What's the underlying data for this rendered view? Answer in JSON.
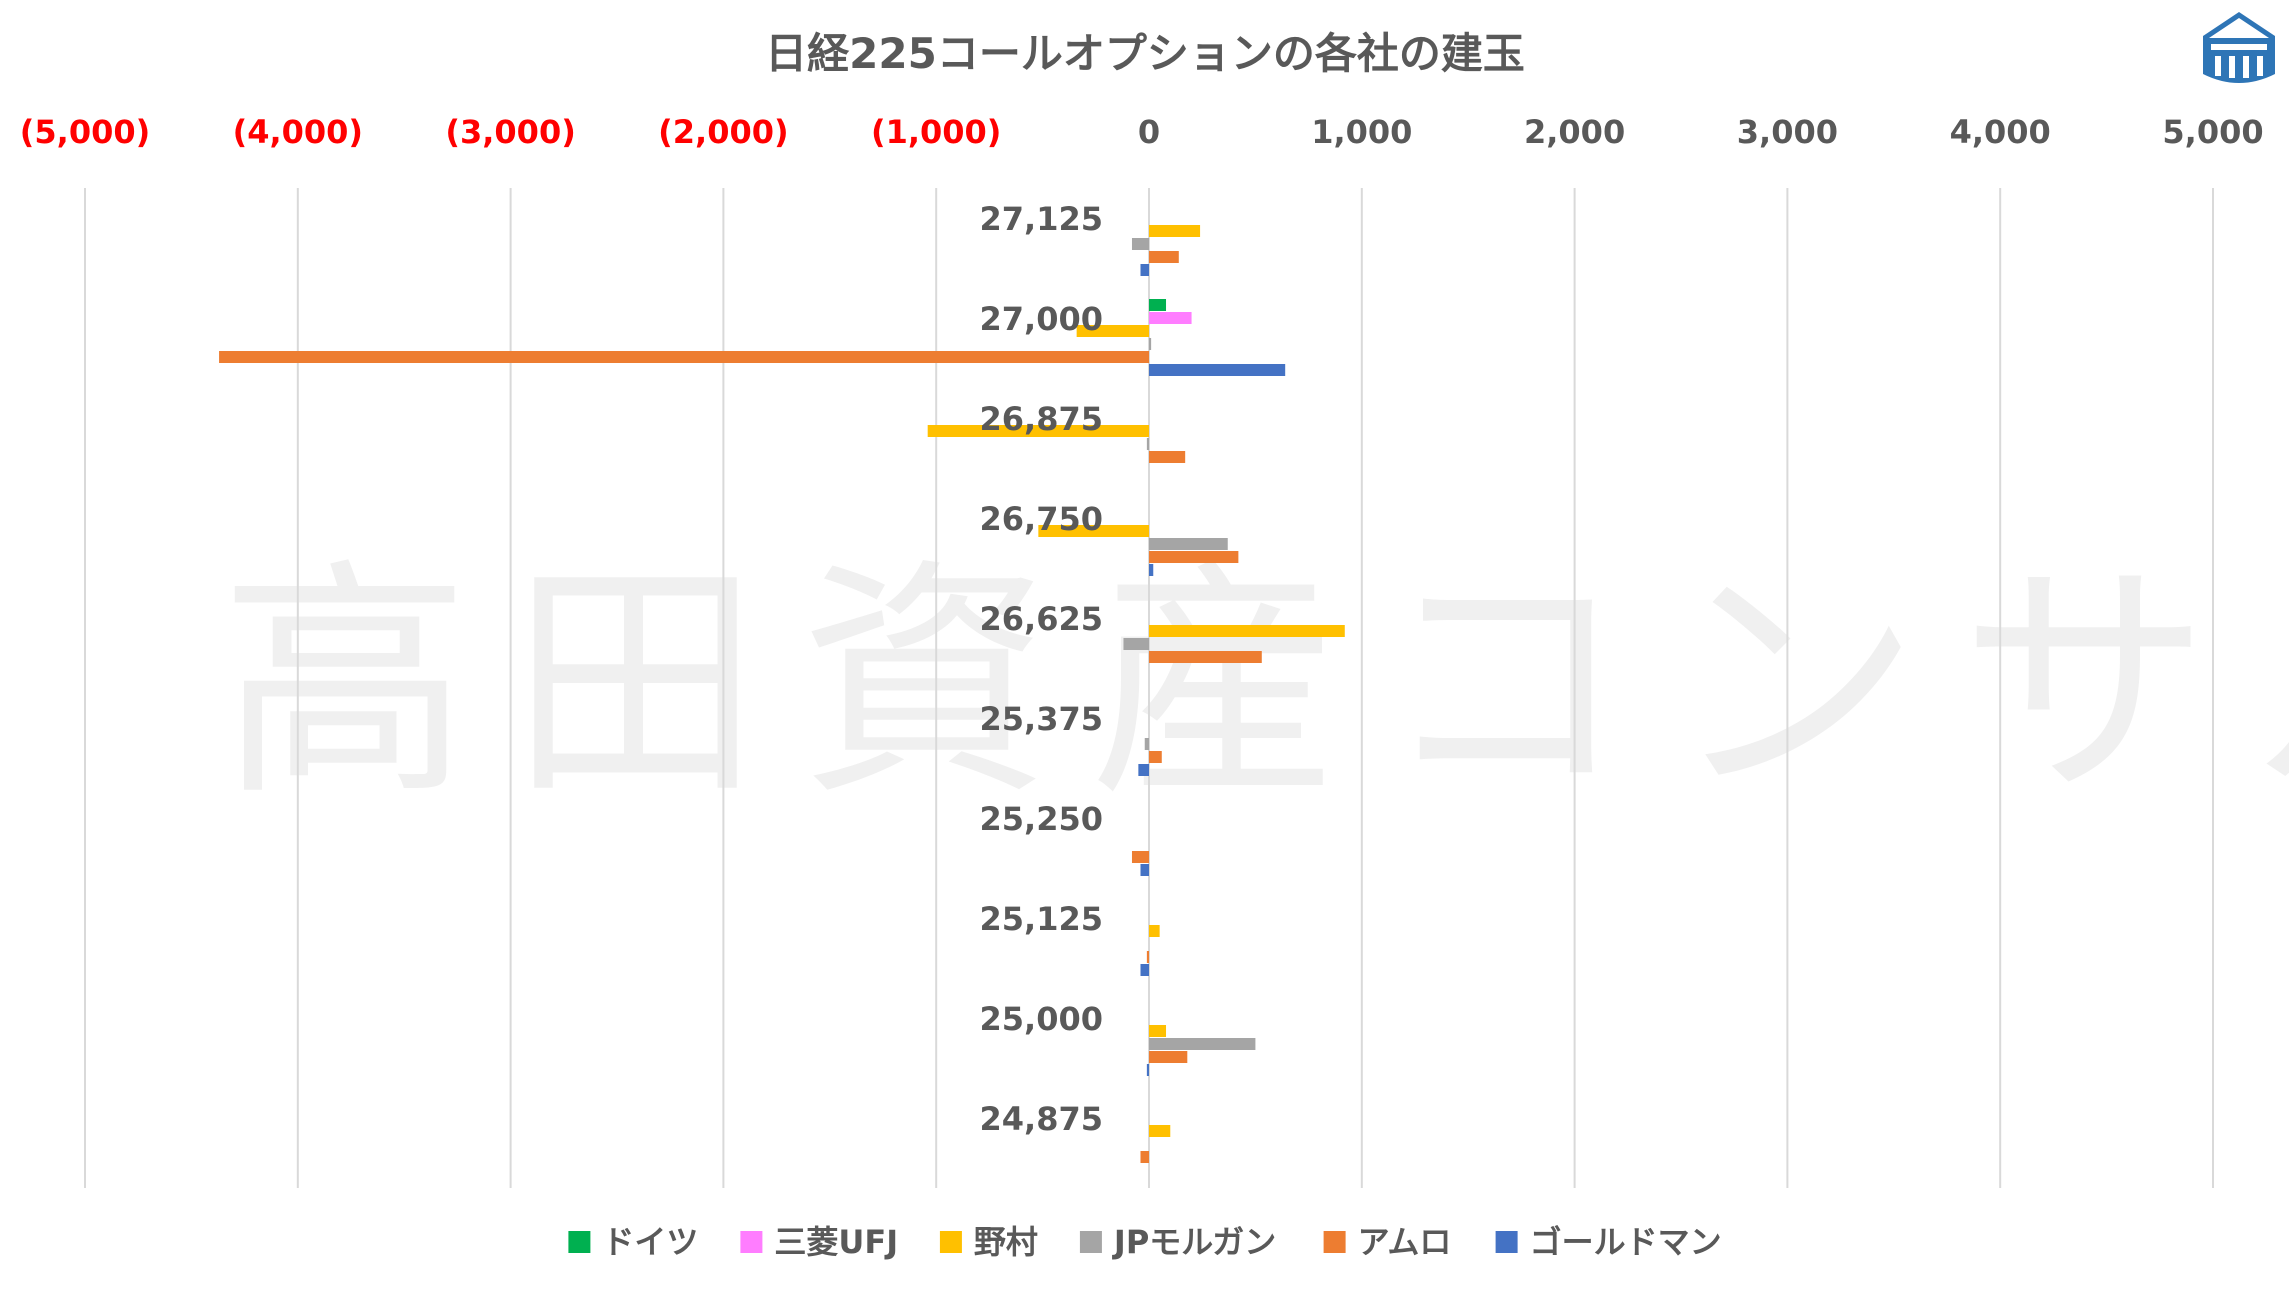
{
  "chart_data": {
    "type": "bar",
    "orientation": "horizontal",
    "title": "日経225コールオプションの各社の建玉",
    "watermark": "高田資産コンサル",
    "xlim": [
      -5000,
      5000
    ],
    "x_ticks": [
      -5000,
      -4000,
      -3000,
      -2000,
      -1000,
      0,
      1000,
      2000,
      3000,
      4000,
      5000
    ],
    "x_tick_labels": [
      "(5,000)",
      "(4,000)",
      "(3,000)",
      "(2,000)",
      "(1,000)",
      "0",
      "1,000",
      "2,000",
      "3,000",
      "4,000",
      "5,000"
    ],
    "negative_tick_color": "#ff0000",
    "positive_tick_color": "#595959",
    "grid": true,
    "legend_position": "bottom",
    "categories": [
      "27,125",
      "27,000",
      "26,875",
      "26,750",
      "26,625",
      "25,375",
      "25,250",
      "25,125",
      "25,000",
      "24,875"
    ],
    "series": [
      {
        "name": "ドイツ",
        "color": "#00b050",
        "values": [
          0,
          80,
          0,
          0,
          0,
          0,
          0,
          0,
          0,
          0
        ]
      },
      {
        "name": "三菱UFJ",
        "color": "#ff7dff",
        "values": [
          0,
          200,
          0,
          0,
          0,
          0,
          0,
          0,
          0,
          0
        ]
      },
      {
        "name": "野村",
        "color": "#ffc000",
        "values": [
          240,
          -340,
          -1040,
          -520,
          920,
          0,
          0,
          50,
          80,
          100
        ]
      },
      {
        "name": "JPモルガン",
        "color": "#a5a5a5",
        "values": [
          -80,
          10,
          -10,
          370,
          -120,
          -20,
          0,
          0,
          500,
          0
        ]
      },
      {
        "name": "アムロ",
        "color": "#ed7d31",
        "values": [
          140,
          -4370,
          170,
          420,
          530,
          60,
          -80,
          -10,
          180,
          -40
        ]
      },
      {
        "name": "ゴールドマン",
        "color": "#4472c4",
        "values": [
          -40,
          640,
          0,
          20,
          0,
          -50,
          -40,
          -40,
          -10,
          0
        ]
      }
    ]
  }
}
